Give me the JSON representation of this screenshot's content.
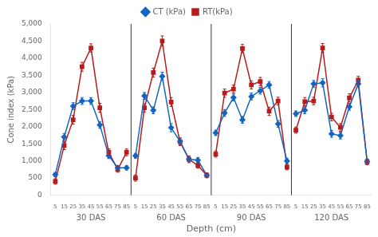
{
  "chart_data": {
    "type": "line",
    "categories": [
      "5",
      "15",
      "25",
      "35",
      "45",
      "55",
      "65",
      "75",
      "85",
      "5",
      "15",
      "25",
      "35",
      "45",
      "55",
      "65",
      "75",
      "85",
      "5",
      "15",
      "25",
      "35",
      "45",
      "55",
      "65",
      "75",
      "85",
      "5",
      "15",
      "25",
      "35",
      "45",
      "55",
      "65",
      "75",
      "85"
    ],
    "groups": [
      "30 DAS",
      "60 DAS",
      "90 DAS",
      "120 DAS"
    ],
    "xlabel": "Depth (cm)",
    "ylabel": "Cone index (kPa)",
    "ylim": [
      0,
      5000
    ],
    "yticks": [
      0,
      500,
      1000,
      1500,
      2000,
      2500,
      3000,
      3500,
      4000,
      4500,
      5000
    ],
    "grid": false,
    "legend": "top",
    "series": [
      {
        "name": "CT (kPa)",
        "color": "#1565C0",
        "marker": "diamond",
        "values": [
          600,
          1700,
          2600,
          2750,
          2750,
          2050,
          1150,
          800,
          800,
          1150,
          2900,
          2480,
          3470,
          1970,
          1570,
          1050,
          1020,
          580,
          1820,
          2400,
          2850,
          2200,
          2880,
          3050,
          3220,
          2080,
          1000,
          2380,
          2480,
          3250,
          3280,
          1790,
          1740,
          2580,
          3250,
          980
        ],
        "errors": [
          60,
          100,
          100,
          100,
          100,
          100,
          80,
          60,
          60,
          70,
          100,
          100,
          120,
          120,
          100,
          80,
          80,
          60,
          80,
          100,
          100,
          100,
          100,
          100,
          100,
          100,
          80,
          80,
          100,
          100,
          120,
          100,
          100,
          100,
          100,
          80
        ]
      },
      {
        "name": "RT(kPa)",
        "color": "#B71C1C",
        "marker": "square",
        "values": [
          400,
          1450,
          2200,
          3750,
          4300,
          2550,
          1250,
          750,
          1250,
          500,
          2550,
          3580,
          4500,
          2720,
          1560,
          1050,
          870,
          580,
          1200,
          2980,
          3100,
          4280,
          3220,
          3320,
          2450,
          2750,
          820,
          1900,
          2730,
          2750,
          4300,
          2280,
          1980,
          2840,
          3360,
          970
        ],
        "errors": [
          80,
          120,
          130,
          130,
          120,
          130,
          100,
          80,
          100,
          90,
          120,
          130,
          150,
          130,
          110,
          100,
          80,
          70,
          90,
          120,
          120,
          120,
          120,
          120,
          120,
          110,
          80,
          90,
          120,
          110,
          130,
          110,
          110,
          120,
          110,
          80
        ]
      }
    ]
  }
}
